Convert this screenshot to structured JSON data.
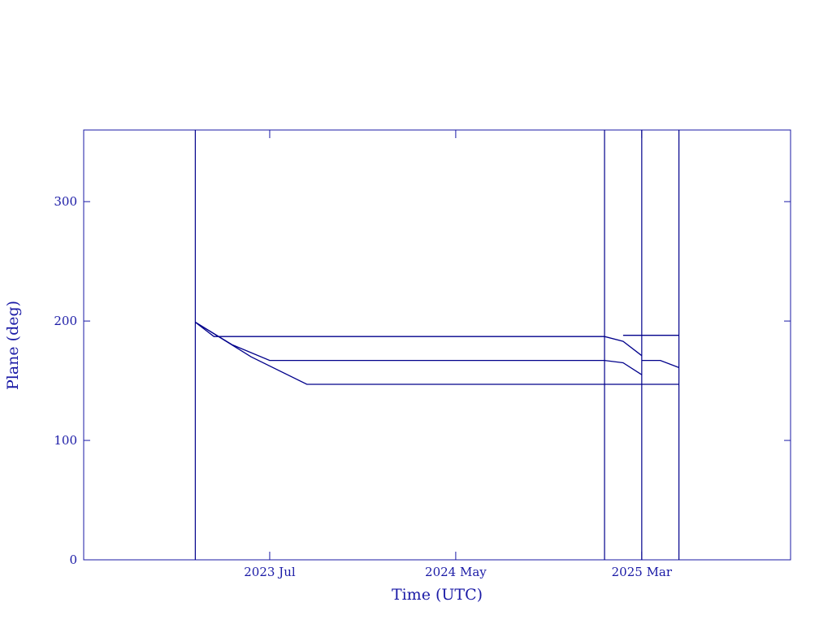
{
  "chart_data": {
    "type": "line",
    "x_label": "Time (UTC)",
    "y_label": "Plane (deg)",
    "xlim": [
      "2022-09",
      "2025-11"
    ],
    "xticks": [
      {
        "value": "2023-07",
        "label": "2023 Jul"
      },
      {
        "value": "2024-05",
        "label": "2024 May"
      },
      {
        "value": "2025-03",
        "label": "2025 Mar"
      }
    ],
    "ylim": [
      0,
      360
    ],
    "yticks": [
      0,
      100,
      200,
      300
    ],
    "color": "#00008b",
    "vlines": [
      "2023-03",
      "2025-01",
      "2025-03",
      "2025-05"
    ],
    "series": [
      {
        "x": [
          "2023-03",
          "2023-04",
          "2025-01",
          "2025-02",
          "2025-03"
        ],
        "values": [
          199,
          187,
          187,
          183,
          171
        ]
      },
      {
        "x": [
          "2023-03",
          "2023-05",
          "2023-07",
          "2025-01",
          "2025-02",
          "2025-03"
        ],
        "values": [
          199,
          180,
          167,
          167,
          165,
          155
        ]
      },
      {
        "x": [
          "2023-03",
          "2023-06",
          "2023-09",
          "2025-05"
        ],
        "values": [
          199,
          170,
          147,
          147
        ]
      },
      {
        "x": [
          "2025-02",
          "2025-05"
        ],
        "values": [
          188,
          188
        ]
      },
      {
        "x": [
          "2025-03",
          "2025-04",
          "2025-05"
        ],
        "values": [
          167,
          167,
          161
        ]
      }
    ]
  }
}
